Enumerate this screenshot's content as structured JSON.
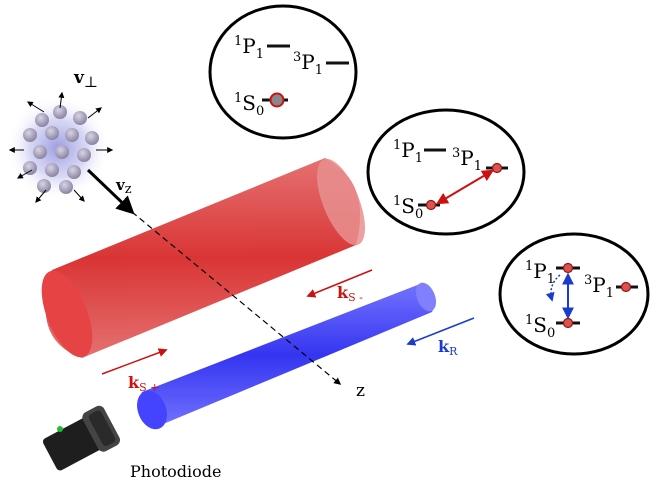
{
  "colors": {
    "red_beam": "#d42020",
    "blue_beam": "#2a2aee",
    "arrow_red": "#cc1111",
    "arrow_blue": "#1a3ccc",
    "level_line": "#111111",
    "atom_fill": "#d9534f",
    "atom_grey": "#888888"
  },
  "velocity": {
    "perp": {
      "sym": "v",
      "sub": "⊥"
    },
    "z": {
      "sym": "v",
      "sub": "z"
    }
  },
  "beams": {
    "s_minus": {
      "sym": "k",
      "sub": "S -"
    },
    "s_plus": {
      "sym": "k",
      "sub": "S +"
    },
    "r": {
      "sym": "k",
      "sub": "R"
    }
  },
  "axis": {
    "z": "z"
  },
  "photodiode": {
    "label": "Photodiode"
  },
  "levels": {
    "p1_singlet": {
      "sup": "1",
      "base": "P",
      "sub": "1"
    },
    "p1_triplet": {
      "sup": "3",
      "base": "P",
      "sub": "1"
    },
    "s0": {
      "sup": "1",
      "base": "S",
      "sub": "0"
    }
  }
}
